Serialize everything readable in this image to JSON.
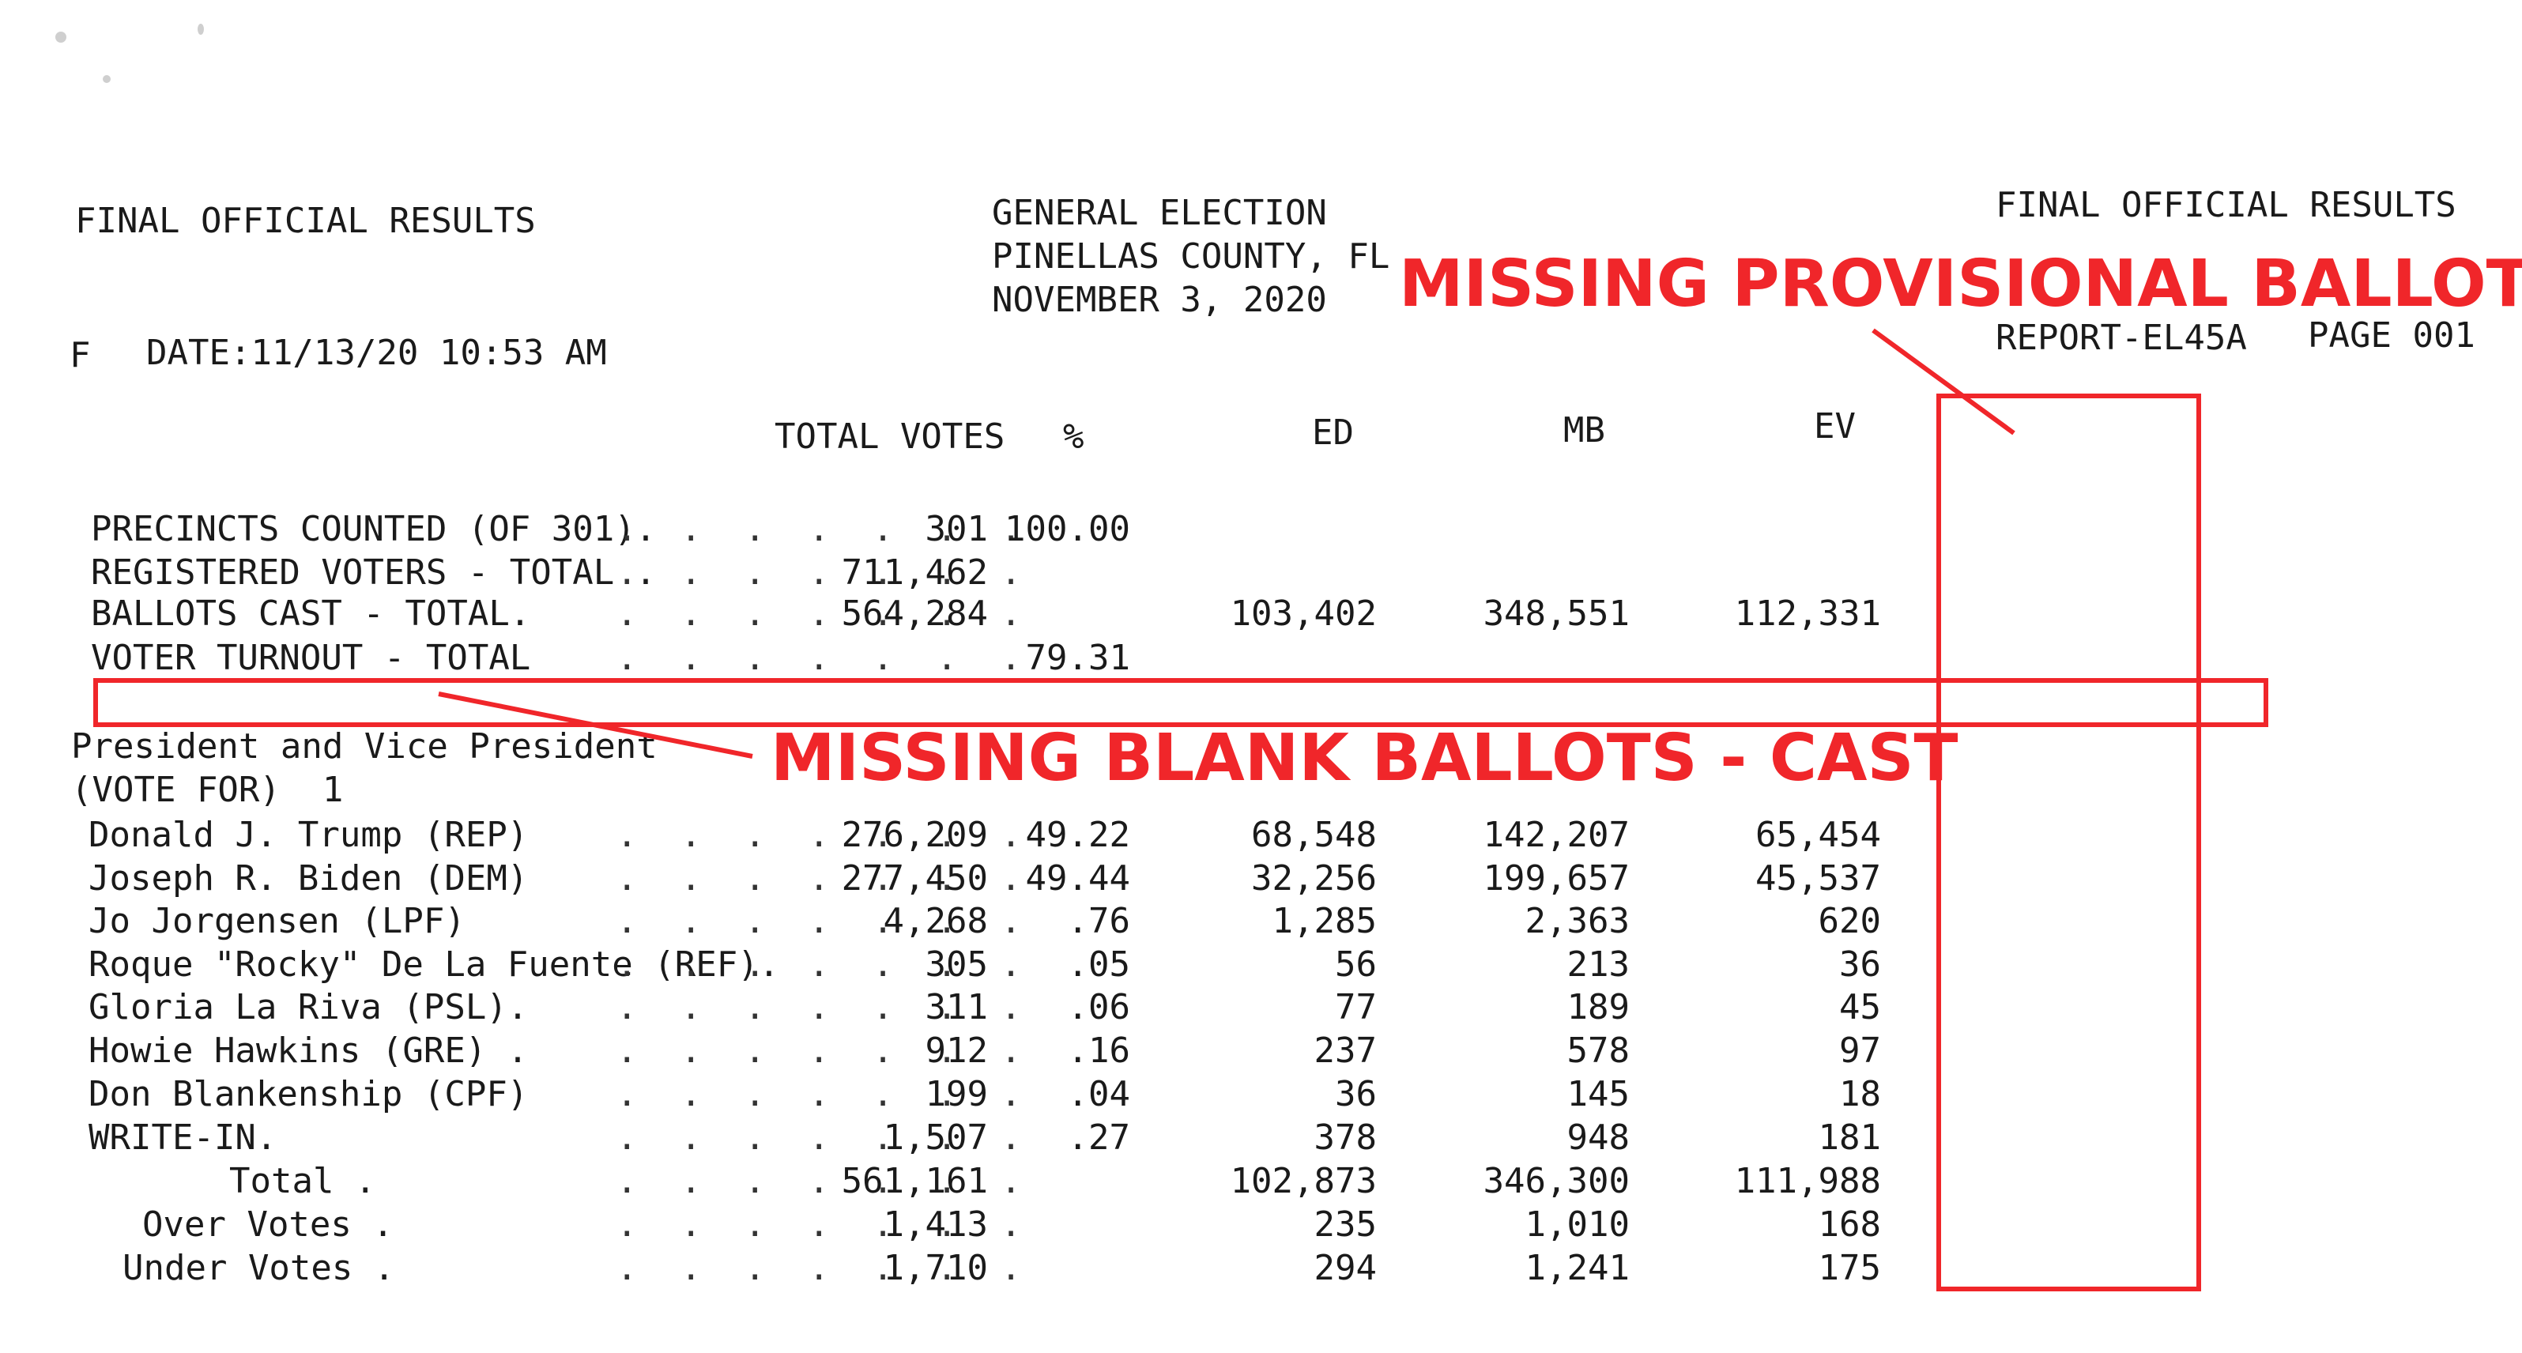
{
  "header": {
    "left_title": "FINAL OFFICIAL RESULTS",
    "date_line": "DATE:11/13/20 10:53 AM",
    "date_prefix": "F",
    "center_line1": "GENERAL ELECTION",
    "center_line2": "PINELLAS COUNTY, FL",
    "center_line3": "NOVEMBER 3, 2020",
    "right_title": "FINAL OFFICIAL RESULTS",
    "report_id": "REPORT-EL45A",
    "page": "PAGE 001"
  },
  "columns": {
    "total_votes": "TOTAL VOTES",
    "pct": "%",
    "ed": "ED",
    "mb": "MB",
    "ev": "EV"
  },
  "summary_rows": [
    {
      "label": "PRECINCTS COUNTED (OF 301).",
      "total": "301",
      "pct": "100.00",
      "ed": "",
      "mb": "",
      "ev": ""
    },
    {
      "label": "REGISTERED VOTERS - TOTAL .",
      "total": "711,462",
      "pct": "",
      "ed": "",
      "mb": "",
      "ev": ""
    },
    {
      "label": "BALLOTS CAST - TOTAL.",
      "total": "564,284",
      "pct": "",
      "ed": "103,402",
      "mb": "348,551",
      "ev": "112,331"
    },
    {
      "label": "VOTER TURNOUT - TOTAL",
      "total": "",
      "pct": "79.31",
      "ed": "",
      "mb": "",
      "ev": ""
    }
  ],
  "contest": {
    "title": "President and Vice President",
    "vote_for": "(VOTE FOR)  1"
  },
  "candidate_rows": [
    {
      "label": "Donald J. Trump (REP)",
      "total": "276,209",
      "pct": "49.22",
      "ed": "68,548",
      "mb": "142,207",
      "ev": "65,454"
    },
    {
      "label": "Joseph R. Biden (DEM)",
      "total": "277,450",
      "pct": "49.44",
      "ed": "32,256",
      "mb": "199,657",
      "ev": "45,537"
    },
    {
      "label": "Jo Jorgensen (LPF)",
      "total": "4,268",
      "pct": ".76",
      "ed": "1,285",
      "mb": "2,363",
      "ev": "620"
    },
    {
      "label": "Roque \"Rocky\" De La Fuente (REF).",
      "total": "305",
      "pct": ".05",
      "ed": "56",
      "mb": "213",
      "ev": "36"
    },
    {
      "label": "Gloria La Riva (PSL).",
      "total": "311",
      "pct": ".06",
      "ed": "77",
      "mb": "189",
      "ev": "45"
    },
    {
      "label": "Howie Hawkins (GRE) .",
      "total": "912",
      "pct": ".16",
      "ed": "237",
      "mb": "578",
      "ev": "97"
    },
    {
      "label": "Don Blankenship (CPF)",
      "total": "199",
      "pct": ".04",
      "ed": "36",
      "mb": "145",
      "ev": "18"
    },
    {
      "label": "WRITE-IN.",
      "total": "1,507",
      "pct": ".27",
      "ed": "378",
      "mb": "948",
      "ev": "181"
    },
    {
      "label": "Total .",
      "total": "561,161",
      "pct": "",
      "ed": "102,873",
      "mb": "346,300",
      "ev": "111,988"
    },
    {
      "label": "Over Votes .",
      "total": "1,413",
      "pct": "",
      "ed": "235",
      "mb": "1,010",
      "ev": "168"
    },
    {
      "label": "Under Votes .",
      "total": "1,710",
      "pct": "",
      "ed": "294",
      "mb": "1,241",
      "ev": "175"
    }
  ],
  "annotations": {
    "provisional": "MISSING PROVISIONAL BALLOTS",
    "blank": "MISSING BLANK BALLOTS - CAST",
    "color": "#f0262a"
  }
}
